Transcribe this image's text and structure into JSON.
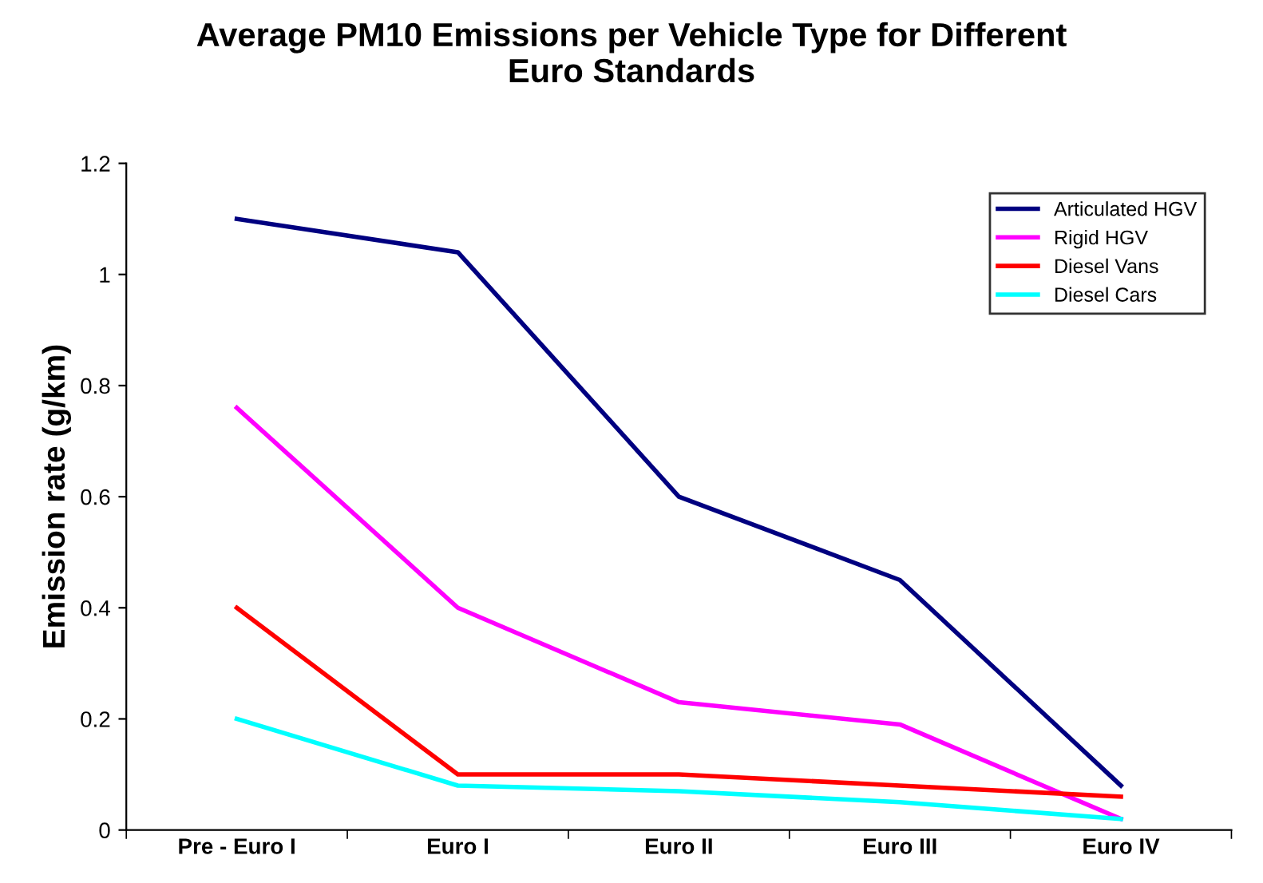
{
  "chart_data": {
    "type": "line",
    "title": "Average PM10 Emissions per Vehicle Type for Different\nEuro Standards",
    "ylabel": "Emission rate (g/km)",
    "categories": [
      "Pre - Euro I",
      "Euro I",
      "Euro II",
      "Euro III",
      "Euro IV"
    ],
    "series": [
      {
        "name": "Articulated HGV",
        "color": "#000080",
        "values": [
          1.1,
          1.04,
          0.6,
          0.45,
          0.08
        ]
      },
      {
        "name": "Rigid HGV",
        "color": "#ff00ff",
        "values": [
          0.76,
          0.4,
          0.23,
          0.19,
          0.02
        ]
      },
      {
        "name": "Diesel Vans",
        "color": "#ff0000",
        "values": [
          0.4,
          0.1,
          0.1,
          0.08,
          0.06
        ]
      },
      {
        "name": "Diesel Cars",
        "color": "#00ffff",
        "values": [
          0.2,
          0.08,
          0.07,
          0.05,
          0.02
        ]
      }
    ],
    "ylim": [
      0,
      1.2
    ],
    "yticks": [
      0,
      0.2,
      0.4,
      0.6,
      0.8,
      1,
      1.2
    ],
    "grid": false,
    "legend": "top right",
    "marker": "none",
    "line_style": "solid"
  }
}
